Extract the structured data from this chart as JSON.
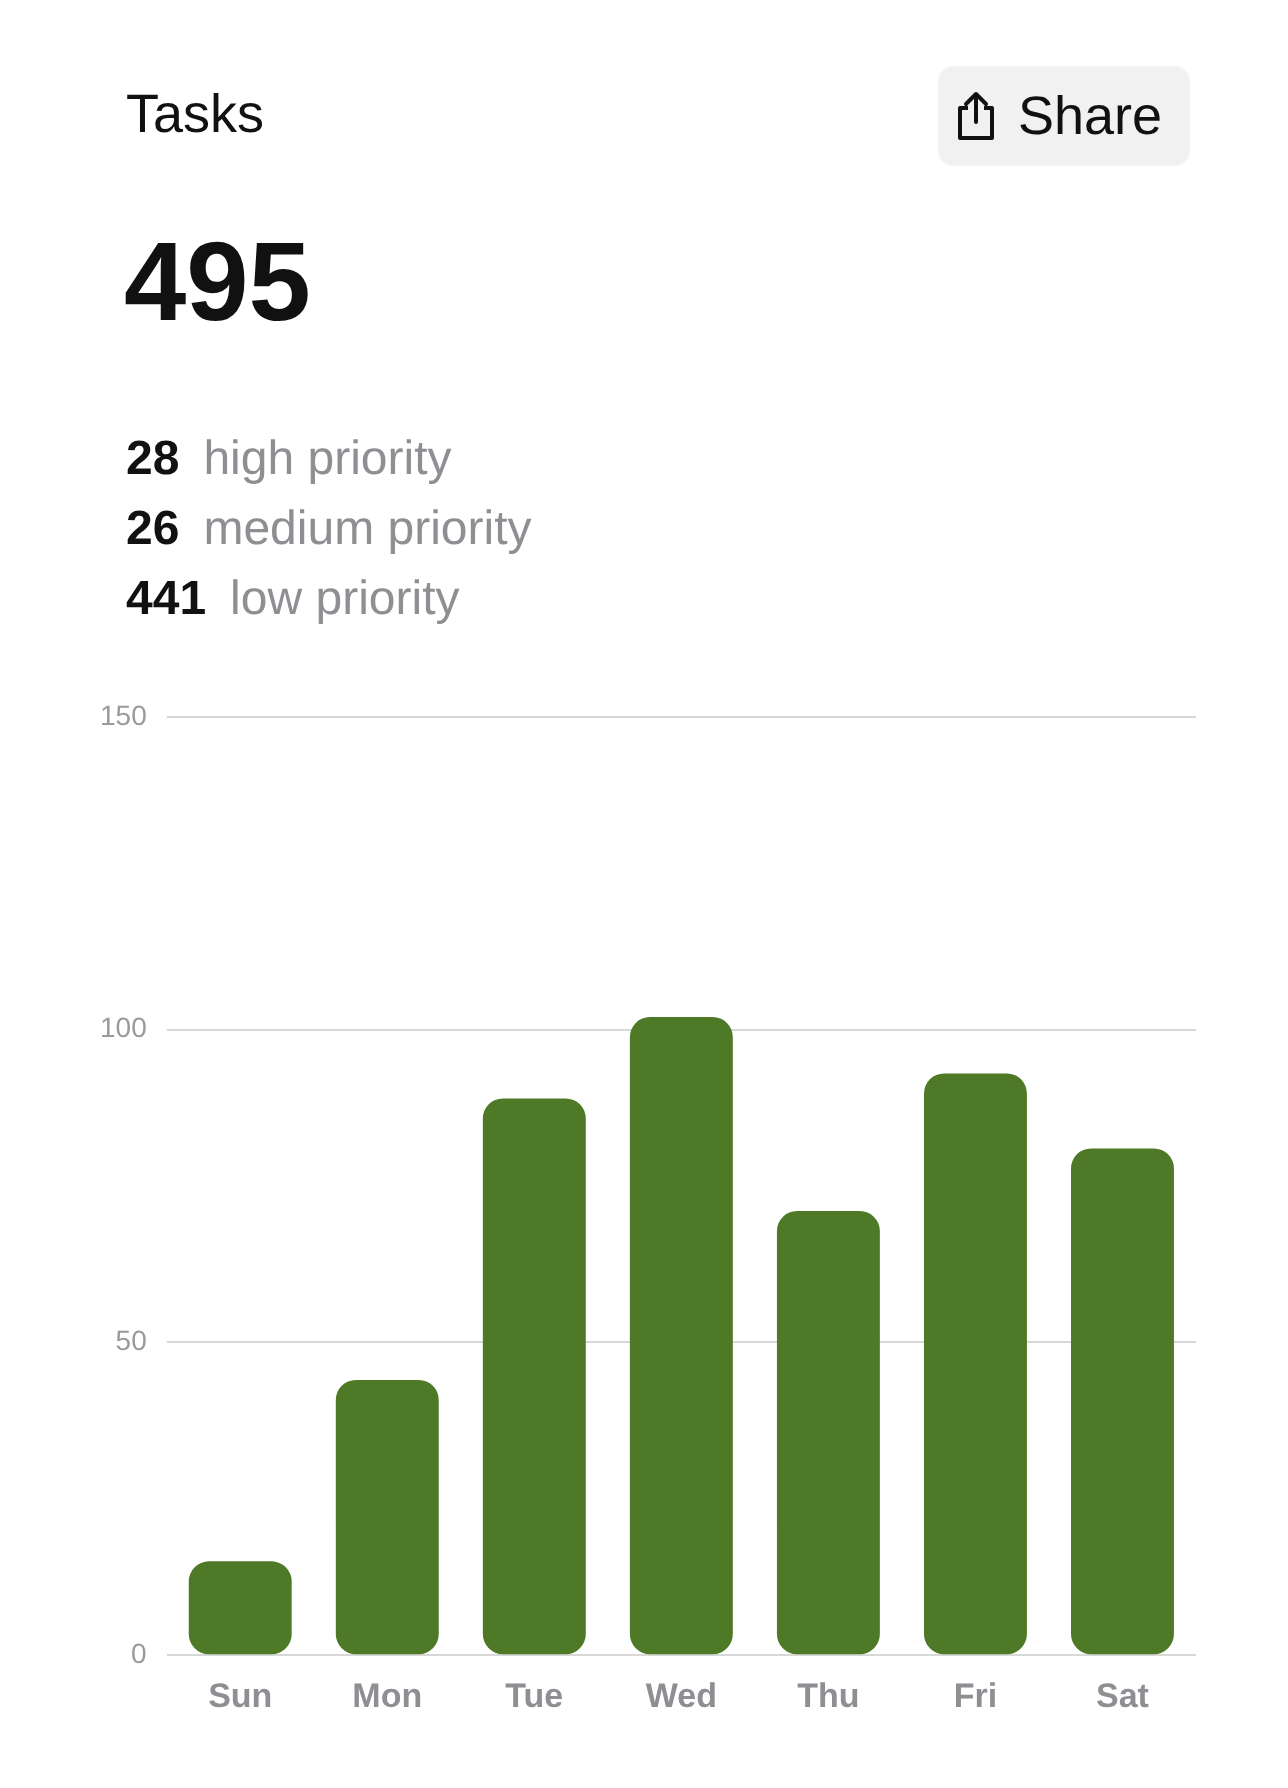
{
  "chart_data": {
    "type": "bar",
    "title": "Tasks",
    "annotations": [
      "Share",
      "495",
      "28",
      "high priority",
      "26",
      "medium priority",
      "441",
      "low priority"
    ],
    "categories": [
      "Sun",
      "Mon",
      "Tue",
      "Wed",
      "Thu",
      "Fri",
      "Sat"
    ],
    "values": [
      15,
      44,
      89,
      102,
      71,
      93,
      81
    ],
    "color": "#4e7a28",
    "ylim": [
      0,
      150
    ],
    "yticks": [
      0,
      50,
      100,
      150
    ],
    "grid": "y",
    "legend": false
  }
}
